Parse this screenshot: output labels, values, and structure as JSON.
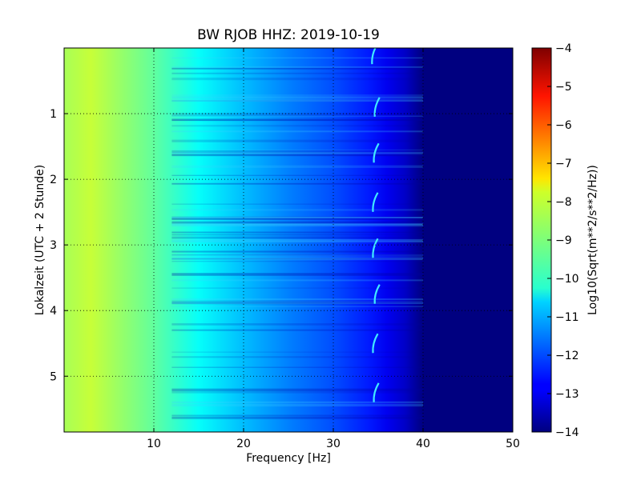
{
  "chart_data": {
    "type": "heatmap",
    "title": "BW RJOB HHZ: 2019-10-19",
    "xlabel": "Frequency [Hz]",
    "ylabel": "Lokalzeit (UTC + 2 Stunde)",
    "xlim": [
      0,
      50
    ],
    "ylim": [
      0,
      5.85
    ],
    "y_inverted": true,
    "x_ticks": [
      10,
      20,
      30,
      40,
      50
    ],
    "y_ticks": [
      1,
      2,
      3,
      4,
      5
    ],
    "grid": true,
    "colormap": "jet",
    "colorbar": {
      "label": "Log10(Sqrt(m**2/s**2/Hz))",
      "range": [
        -14,
        -4
      ],
      "ticks": [
        -4,
        -5,
        -6,
        -7,
        -8,
        -9,
        -10,
        -11,
        -12,
        -13,
        -14
      ]
    },
    "spectrum_profile": {
      "frequency_hz": [
        0,
        3,
        10,
        15,
        20,
        25,
        30,
        34,
        36,
        38,
        40,
        50
      ],
      "log10_psd": [
        -8.6,
        -8.3,
        -9.3,
        -10.2,
        -10.9,
        -11.5,
        -12.0,
        -12.5,
        -12.9,
        -13.3,
        -14.0,
        -14.0
      ]
    },
    "transient_features": [
      {
        "frequency_hz": 34.5,
        "time_hours": 0.1
      },
      {
        "frequency_hz": 34.8,
        "time_hours": 0.9
      },
      {
        "frequency_hz": 34.7,
        "time_hours": 1.6
      },
      {
        "frequency_hz": 34.6,
        "time_hours": 2.35
      },
      {
        "frequency_hz": 34.6,
        "time_hours": 3.05
      },
      {
        "frequency_hz": 34.8,
        "time_hours": 3.75
      },
      {
        "frequency_hz": 34.6,
        "time_hours": 4.5
      },
      {
        "frequency_hz": 34.7,
        "time_hours": 5.25
      }
    ]
  }
}
